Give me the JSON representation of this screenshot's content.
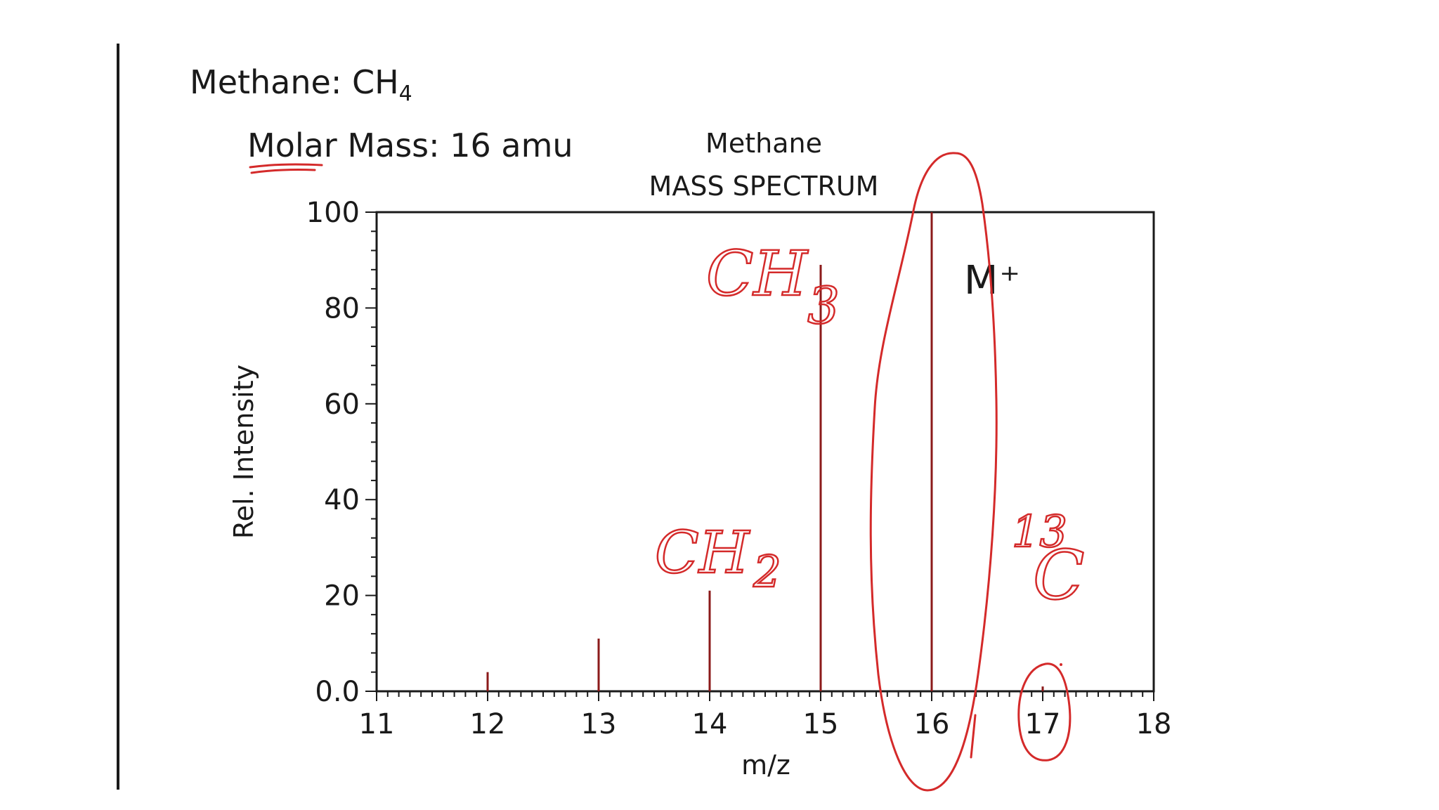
{
  "header": {
    "compound_label": "Methane:  CH",
    "compound_subscript": "4",
    "molar_mass": "Molar Mass: 16 amu"
  },
  "annotations": {
    "ch3": "CH",
    "ch3_sub": "3",
    "ch2": "CH",
    "ch2_sub": "2",
    "c13_mass": "13",
    "c13_element": "C"
  },
  "colors": {
    "ink": "#d42a2a",
    "peaks": "#8b1a1a",
    "axes": "#1a1a1a"
  },
  "chart_data": {
    "type": "bar",
    "title": "Methane",
    "subtitle": "MASS SPECTRUM",
    "xlabel": "m/z",
    "ylabel": "Rel. Intensity",
    "xlim": [
      11,
      18
    ],
    "ylim": [
      0,
      100
    ],
    "x_ticks": [
      "11",
      "12",
      "13",
      "14",
      "15",
      "16",
      "17",
      "18"
    ],
    "y_ticks": [
      "0.0",
      "20",
      "40",
      "60",
      "80",
      "100"
    ],
    "peaks": [
      {
        "x": 12,
        "y": 4
      },
      {
        "x": 13,
        "y": 11
      },
      {
        "x": 14,
        "y": 21
      },
      {
        "x": 15,
        "y": 89
      },
      {
        "x": 16,
        "y": 100
      },
      {
        "x": 17,
        "y": 1
      }
    ],
    "annotation": "M⁺"
  }
}
